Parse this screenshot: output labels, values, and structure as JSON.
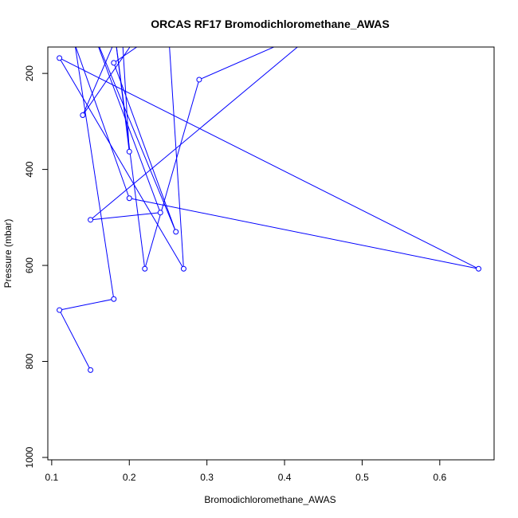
{
  "chart_data": {
    "type": "line",
    "title": "ORCAS RF17 Bromodichloromethane_AWAS",
    "xlabel": "Bromodichloromethane_AWAS",
    "ylabel": "Pressure (mbar)",
    "xlim": [
      0.095,
      0.67
    ],
    "ylim": [
      1005,
      145
    ],
    "y_reversed": true,
    "x_ticks": [
      0.1,
      0.2,
      0.3,
      0.4,
      0.5,
      0.6
    ],
    "x_tick_labels": [
      "0.1",
      "0.2",
      "0.3",
      "0.4",
      "0.5",
      "0.6"
    ],
    "y_ticks": [
      200,
      400,
      600,
      800,
      1000
    ],
    "y_tick_labels": [
      "200",
      "400",
      "600",
      "800",
      "1000"
    ],
    "grid": false,
    "line_color": "#0000ff",
    "points": [
      {
        "x": 0.15,
        "y": 818
      },
      {
        "x": 0.11,
        "y": 693
      },
      {
        "x": 0.18,
        "y": 670
      },
      {
        "x": 0.13,
        "y": 140
      },
      {
        "x": 0.2,
        "y": 460
      },
      {
        "x": 0.65,
        "y": 607
      },
      {
        "x": 0.11,
        "y": 168
      },
      {
        "x": 0.27,
        "y": 607
      },
      {
        "x": 0.25,
        "y": 100
      },
      {
        "x": 0.18,
        "y": 178
      },
      {
        "x": 0.26,
        "y": 530
      },
      {
        "x": 0.15,
        "y": 100
      },
      {
        "x": 0.24,
        "y": 490
      },
      {
        "x": 0.15,
        "y": 505
      },
      {
        "x": 0.45,
        "y": 100
      },
      {
        "x": 0.29,
        "y": 213
      },
      {
        "x": 0.22,
        "y": 607
      },
      {
        "x": 0.18,
        "y": 100
      },
      {
        "x": 0.2,
        "y": 363
      },
      {
        "x": 0.19,
        "y": 100
      },
      {
        "x": 0.14,
        "y": 287
      },
      {
        "x": 0.22,
        "y": 100
      }
    ]
  }
}
